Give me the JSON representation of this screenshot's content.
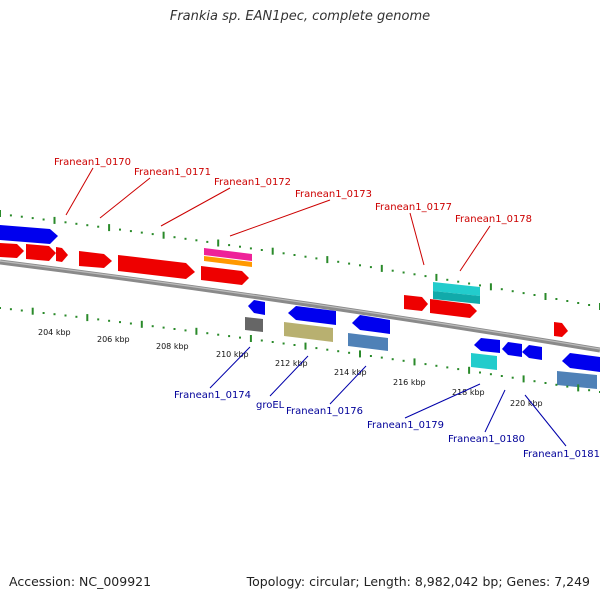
{
  "title": "Frankia sp. EAN1pec, complete genome",
  "footer": {
    "accession": "Accession: NC_009921",
    "stats": "Topology: circular; Length: 8,982,042 bp; Genes: 7,249"
  },
  "colors": {
    "forward_label": "#cc0000",
    "reverse_label": "#000099",
    "tick_mark": "#2a8a2a",
    "backbone": "#888888"
  },
  "axis_labels": [
    "204 kbp",
    "206 kbp",
    "208 kbp",
    "210 kbp",
    "212 kbp",
    "214 kbp",
    "216 kbp",
    "218 kbp",
    "220 kbp"
  ],
  "forward_gene_labels": [
    "Franean1_0170",
    "Franean1_0171",
    "Franean1_0172",
    "Franean1_0173",
    "Franean1_0177",
    "Franean1_0178"
  ],
  "reverse_gene_labels": [
    "Franean1_0174",
    "groEL",
    "Franean1_0176",
    "Franean1_0179",
    "Franean1_0180",
    "Franean1_0181"
  ]
}
